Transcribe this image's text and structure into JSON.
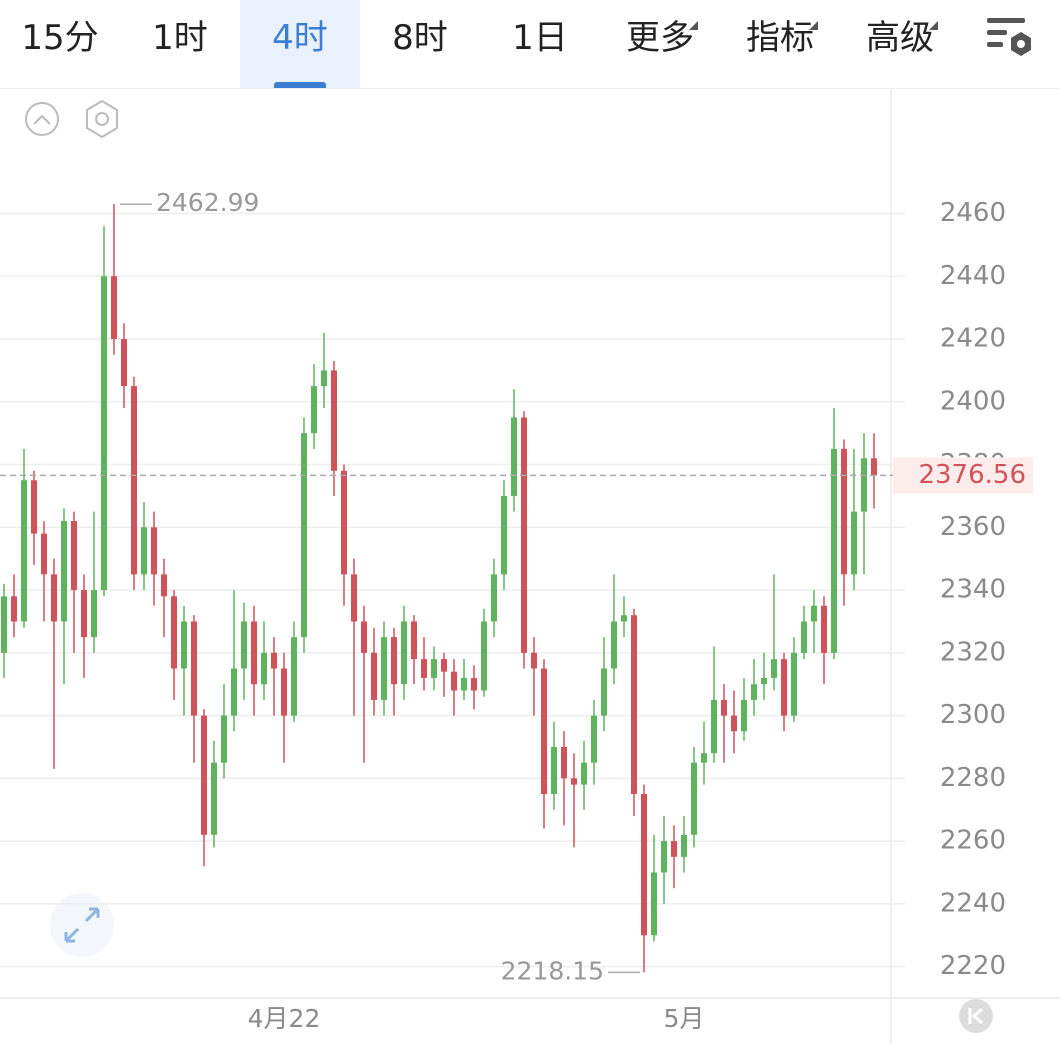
{
  "toolbar": {
    "tabs": [
      "15分",
      "1时",
      "4时",
      "8时",
      "1日",
      "更多",
      "指标",
      "高级"
    ],
    "selected": 2
  },
  "chart_data": {
    "type": "candlestick",
    "categories": [
      null,
      null,
      null,
      null,
      null,
      null,
      null,
      null,
      null,
      null,
      null,
      null,
      null,
      null,
      null,
      null,
      null,
      null,
      null,
      null,
      null,
      null,
      null,
      null,
      null,
      null,
      null,
      null,
      "4月22",
      null,
      null,
      null,
      null,
      null,
      null,
      null,
      null,
      null,
      null,
      null,
      null,
      null,
      null,
      null,
      null,
      null,
      null,
      null,
      null,
      null,
      null,
      null,
      null,
      null,
      null,
      null,
      null,
      null,
      null,
      null,
      null,
      null,
      null,
      null,
      null,
      null,
      null,
      null,
      "5月",
      null,
      null,
      null,
      null,
      null,
      null,
      null,
      null,
      null,
      null,
      null,
      null,
      null,
      null,
      null,
      null,
      null,
      null,
      null
    ],
    "open": [
      2320,
      2338,
      2330,
      2375,
      2358,
      2345,
      2330,
      2362,
      2340,
      2325,
      2340,
      2440,
      2420,
      2405,
      2345,
      2360,
      2345,
      2338,
      2315,
      2330,
      2300,
      2262,
      2285,
      2300,
      2315,
      2330,
      2310,
      2320,
      2315,
      2300,
      2325,
      2390,
      2405,
      2410,
      2378,
      2345,
      2330,
      2320,
      2305,
      2325,
      2310,
      2330,
      2318,
      2312,
      2318,
      2314,
      2308,
      2312,
      2308,
      2330,
      2345,
      2370,
      2395,
      2320,
      2315,
      2275,
      2290,
      2280,
      2278,
      2285,
      2300,
      2315,
      2330,
      2332,
      2275,
      2230,
      2250,
      2260,
      2255,
      2262,
      2285,
      2288,
      2305,
      2300,
      2295,
      2305,
      2310,
      2312,
      2318,
      2300,
      2320,
      2330,
      2335,
      2320,
      2385,
      2345,
      2365,
      2382
    ],
    "high": [
      2342,
      2345,
      2385,
      2378,
      2362,
      2350,
      2366,
      2365,
      2345,
      2365,
      2456,
      2462.99,
      2425,
      2408,
      2368,
      2365,
      2350,
      2340,
      2335,
      2332,
      2302,
      2292,
      2310,
      2340,
      2336,
      2335,
      2330,
      2325,
      2320,
      2330,
      2395,
      2412,
      2422,
      2413,
      2380,
      2350,
      2335,
      2328,
      2330,
      2328,
      2335,
      2332,
      2325,
      2322,
      2320,
      2318,
      2318,
      2316,
      2334,
      2350,
      2375,
      2404,
      2397,
      2325,
      2318,
      2298,
      2295,
      2288,
      2292,
      2305,
      2325,
      2345,
      2338,
      2334,
      2278,
      2262,
      2268,
      2265,
      2268,
      2290,
      2298,
      2322,
      2310,
      2308,
      2312,
      2318,
      2320,
      2345,
      2320,
      2325,
      2335,
      2340,
      2338,
      2398,
      2388,
      2385,
      2390,
      2390
    ],
    "low": [
      2312,
      2325,
      2328,
      2348,
      2330,
      2283,
      2310,
      2320,
      2312,
      2320,
      2338,
      2415,
      2398,
      2340,
      2340,
      2335,
      2325,
      2305,
      2300,
      2285,
      2252,
      2258,
      2280,
      2295,
      2305,
      2300,
      2305,
      2300,
      2285,
      2298,
      2320,
      2385,
      2398,
      2370,
      2335,
      2300,
      2285,
      2300,
      2300,
      2300,
      2305,
      2310,
      2308,
      2308,
      2306,
      2300,
      2305,
      2302,
      2306,
      2325,
      2340,
      2365,
      2315,
      2300,
      2264,
      2270,
      2265,
      2258,
      2270,
      2278,
      2295,
      2310,
      2325,
      2268,
      2218.15,
      2228,
      2240,
      2245,
      2250,
      2258,
      2278,
      2285,
      2285,
      2288,
      2292,
      2300,
      2305,
      2308,
      2295,
      2298,
      2318,
      2320,
      2310,
      2318,
      2335,
      2340,
      2345,
      2366
    ],
    "close": [
      2338,
      2330,
      2375,
      2358,
      2345,
      2330,
      2362,
      2340,
      2325,
      2340,
      2440,
      2420,
      2405,
      2345,
      2360,
      2345,
      2338,
      2315,
      2330,
      2300,
      2262,
      2285,
      2300,
      2315,
      2330,
      2310,
      2320,
      2315,
      2300,
      2325,
      2390,
      2405,
      2410,
      2378,
      2345,
      2330,
      2320,
      2305,
      2325,
      2310,
      2330,
      2318,
      2312,
      2318,
      2314,
      2308,
      2312,
      2308,
      2330,
      2345,
      2370,
      2395,
      2320,
      2315,
      2275,
      2290,
      2280,
      2278,
      2285,
      2300,
      2315,
      2330,
      2332,
      2275,
      2230,
      2250,
      2260,
      2255,
      2262,
      2285,
      2288,
      2305,
      2300,
      2295,
      2305,
      2310,
      2312,
      2318,
      2300,
      2320,
      2330,
      2335,
      2320,
      2385,
      2345,
      2365,
      2382,
      2376.56
    ],
    "up_color": "#5fb35f",
    "down_color": "#d0525a",
    "ylim": [
      2210,
      2500
    ],
    "yticks": [
      2220,
      2240,
      2260,
      2280,
      2300,
      2320,
      2340,
      2360,
      2380,
      2400,
      2420,
      2440,
      2460
    ],
    "grid": true,
    "high_marker": 11,
    "low_marker": 64,
    "last_marker": 87
  }
}
